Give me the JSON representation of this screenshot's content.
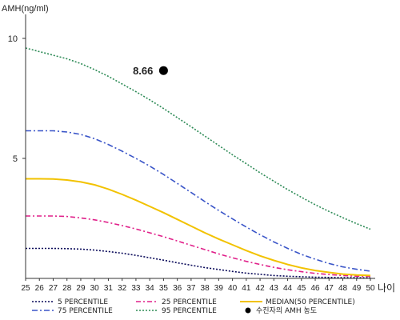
{
  "chart_data": {
    "type": "line",
    "ylabel": "AMH(ng/ml)",
    "xlabel": "나이",
    "xlim": [
      25,
      50
    ],
    "ylim": [
      0,
      11
    ],
    "x_ticks": [
      25,
      26,
      27,
      28,
      29,
      30,
      31,
      32,
      33,
      34,
      35,
      36,
      37,
      38,
      39,
      40,
      41,
      42,
      43,
      44,
      45,
      46,
      47,
      48,
      49,
      50
    ],
    "y_ticks": [
      5,
      10
    ],
    "grid": false,
    "legend_position": "bottom",
    "x": [
      25,
      26,
      27,
      28,
      29,
      30,
      31,
      32,
      33,
      34,
      35,
      36,
      37,
      38,
      39,
      40,
      41,
      42,
      43,
      44,
      45,
      46,
      47,
      48,
      49,
      50
    ],
    "series": [
      {
        "name": "5 PERCENTILE",
        "color": "#0a0a5a",
        "dash": "2,2",
        "values": [
          1.25,
          1.25,
          1.25,
          1.24,
          1.22,
          1.18,
          1.12,
          1.05,
          0.96,
          0.86,
          0.76,
          0.65,
          0.55,
          0.45,
          0.37,
          0.29,
          0.22,
          0.17,
          0.12,
          0.09,
          0.07,
          0.05,
          0.04,
          0.03,
          0.03,
          0.02
        ]
      },
      {
        "name": "25 PERCENTILE",
        "color": "#e0208a",
        "dash": "6,3,2,3",
        "values": [
          2.6,
          2.6,
          2.6,
          2.58,
          2.52,
          2.44,
          2.33,
          2.2,
          2.06,
          1.9,
          1.74,
          1.56,
          1.38,
          1.2,
          1.02,
          0.86,
          0.71,
          0.58,
          0.46,
          0.36,
          0.28,
          0.21,
          0.16,
          0.12,
          0.09,
          0.08
        ]
      },
      {
        "name": "MEDIAN(50 PERCENTILE)",
        "color": "#f2c200",
        "dash": "",
        "values": [
          4.15,
          4.15,
          4.14,
          4.1,
          4.02,
          3.9,
          3.72,
          3.5,
          3.26,
          3.0,
          2.74,
          2.46,
          2.18,
          1.9,
          1.64,
          1.4,
          1.16,
          0.94,
          0.75,
          0.58,
          0.44,
          0.33,
          0.25,
          0.18,
          0.14,
          0.12
        ]
      },
      {
        "name": "75 PERCENTILE",
        "color": "#3a55c8",
        "dash": "7,3,2,3",
        "values": [
          6.15,
          6.15,
          6.15,
          6.1,
          6.0,
          5.82,
          5.58,
          5.3,
          5.0,
          4.68,
          4.33,
          3.96,
          3.58,
          3.2,
          2.83,
          2.48,
          2.14,
          1.82,
          1.52,
          1.25,
          1.0,
          0.8,
          0.62,
          0.48,
          0.38,
          0.3
        ]
      },
      {
        "name": "95 PERCENTILE",
        "color": "#2e8b57",
        "dash": "2,2",
        "values": [
          9.6,
          9.45,
          9.3,
          9.15,
          8.95,
          8.7,
          8.42,
          8.1,
          7.78,
          7.44,
          7.08,
          6.7,
          6.32,
          5.93,
          5.54,
          5.15,
          4.78,
          4.4,
          4.05,
          3.7,
          3.38,
          3.07,
          2.79,
          2.53,
          2.28,
          2.05
        ]
      }
    ],
    "marker": {
      "name": "수진자의 AMH 농도",
      "x": 35,
      "y": 8.66,
      "label": "8.66",
      "color": "#000000"
    }
  }
}
